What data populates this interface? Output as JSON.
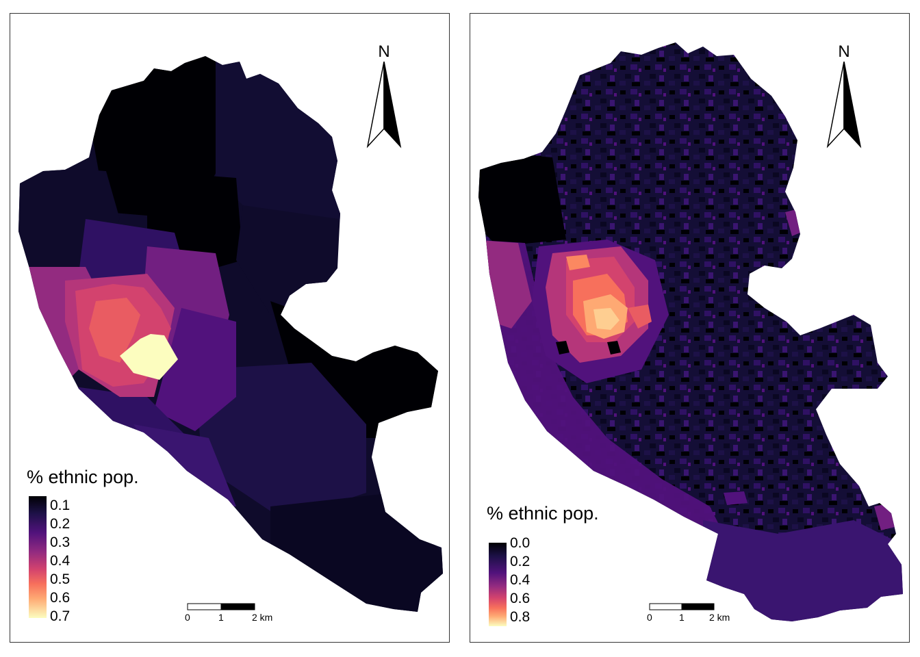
{
  "colors": {
    "c0": "#000004",
    "c1": "#0f0b2b",
    "c2": "#1d1147",
    "c3": "#2f1163",
    "c4": "#51127c",
    "c5": "#721f81",
    "c6": "#932b80",
    "c7": "#b5367a",
    "c8": "#d3436e",
    "c9": "#e95c62",
    "c10": "#f7705c",
    "c11": "#fb8861",
    "c12": "#fea973",
    "c13": "#fece91",
    "c14": "#fcfdbf"
  },
  "north_arrow": {
    "label": "N",
    "icon": "north-arrow-icon"
  },
  "panels": [
    {
      "legend": {
        "title": "% ethnic pop.",
        "labels": [
          "0.1",
          "0.2",
          "0.3",
          "0.4",
          "0.5",
          "0.6",
          "0.7"
        ]
      },
      "scale_bar": {
        "labels": [
          "0",
          "1",
          "2 km"
        ]
      }
    },
    {
      "legend": {
        "title": "% ethnic pop.",
        "labels": [
          "0.0",
          "0.2",
          "0.4",
          "0.6",
          "0.8"
        ]
      },
      "scale_bar": {
        "labels": [
          "0",
          "1",
          "2 km"
        ]
      }
    }
  ]
}
